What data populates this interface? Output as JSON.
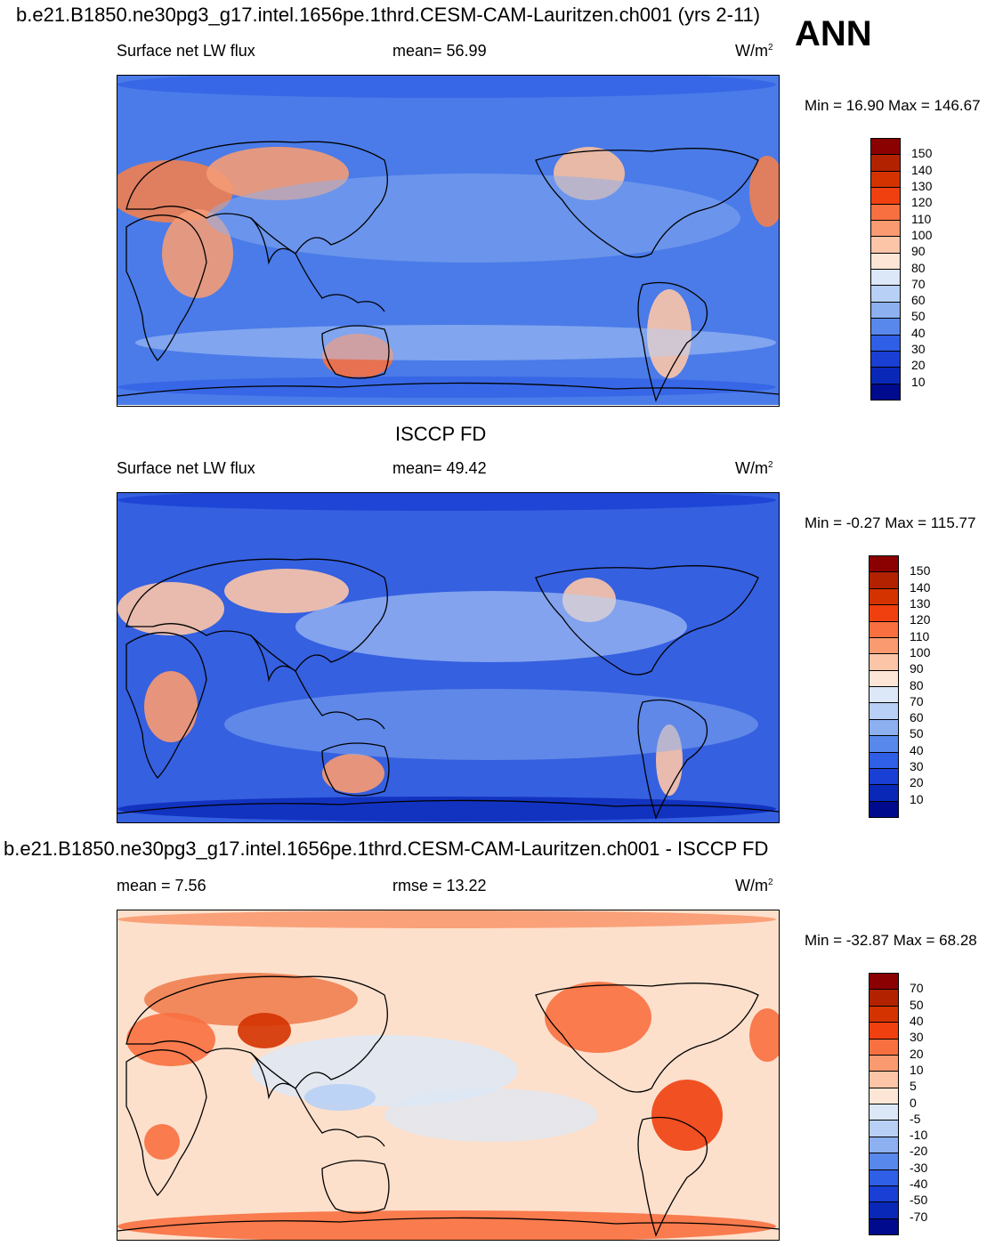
{
  "title_top": "b.e21.B1850.ne30pg3_g17.intel.1656pe.1thrd.CESM-CAM-Lauritzen.ch001 (yrs 2-11)",
  "season": "ANN",
  "panel1": {
    "variable": "Surface net LW flux",
    "mean_text": "mean=  56.99",
    "units_base": "W/m",
    "units_exp": "2",
    "minmax": "Min =  16.90 Max = 146.67"
  },
  "panel2": {
    "title": "ISCCP FD",
    "variable": "Surface net LW flux",
    "mean_text": "mean=  49.42",
    "units_base": "W/m",
    "units_exp": "2",
    "minmax": "Min =  -0.27 Max = 115.77"
  },
  "panel3": {
    "title": "b.e21.B1850.ne30pg3_g17.intel.1656pe.1thrd.CESM-CAM-Lauritzen.ch001 - ISCCP FD",
    "mean_text": "mean =   7.56",
    "rmse_text": "rmse =  13.22",
    "units_base": "W/m",
    "units_exp": "2",
    "minmax": "Min = -32.87 Max =  68.28"
  },
  "colorbar_abs": {
    "labels": [
      "150",
      "140",
      "130",
      "120",
      "110",
      "100",
      "90",
      "80",
      "70",
      "60",
      "50",
      "40",
      "30",
      "20",
      "10"
    ],
    "colors": [
      "#8b0000",
      "#b22200",
      "#d43300",
      "#f04010",
      "#f87040",
      "#f99a70",
      "#fcc5a8",
      "#fde6d6",
      "#dce8f8",
      "#b8d0f6",
      "#8cb0f0",
      "#5888ec",
      "#2f5fe6",
      "#1a3fd4",
      "#0a28b8",
      "#000a8c"
    ]
  },
  "colorbar_diff": {
    "labels": [
      "70",
      "50",
      "40",
      "30",
      "20",
      "10",
      "5",
      "0",
      "-5",
      "-10",
      "-20",
      "-30",
      "-40",
      "-50",
      "-70"
    ],
    "colors": [
      "#8b0000",
      "#b22200",
      "#d43300",
      "#f04010",
      "#f87040",
      "#f99a70",
      "#fcc5a8",
      "#fde6d6",
      "#dce8f8",
      "#b8d0f6",
      "#8cb0f0",
      "#5888ec",
      "#2f5fe6",
      "#1a3fd4",
      "#0a28b8",
      "#000a8c"
    ]
  },
  "map_fill": {
    "panel1_background": "#4a7be8",
    "panel2_background": "#3560e0",
    "panel3_background": "#fde0cc"
  }
}
